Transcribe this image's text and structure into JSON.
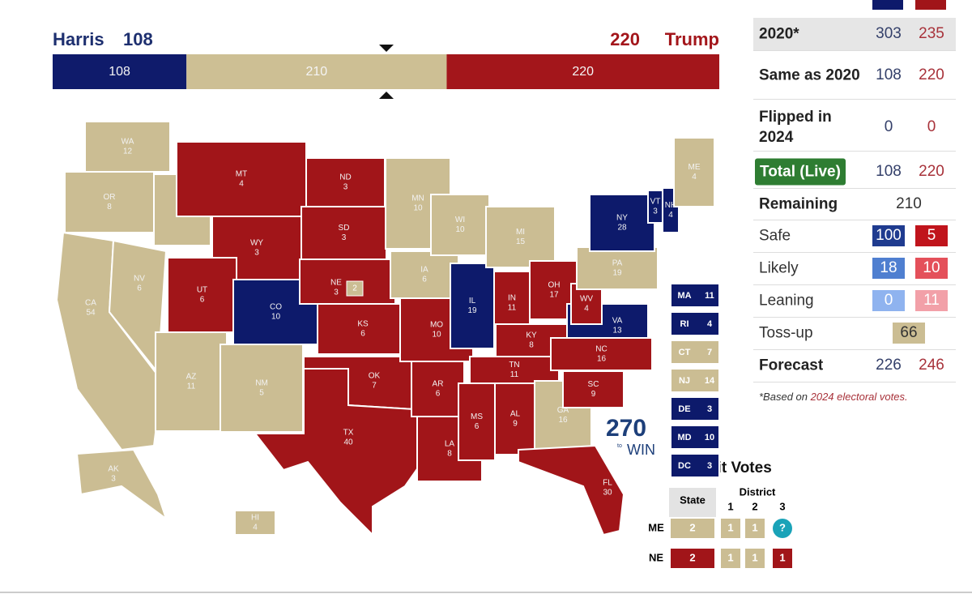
{
  "header": {
    "left_name": "Harris",
    "left_total": 108,
    "right_total": 220,
    "right_name": "Trump"
  },
  "bar": {
    "segments": [
      {
        "value": 108,
        "color": "#0f1b6b"
      },
      {
        "value": 210,
        "color": "#cdbf94"
      },
      {
        "value": 220,
        "color": "#a3161b"
      }
    ]
  },
  "colors": {
    "D": "#0d1a6b",
    "R": "#a11519",
    "T": "#cbbd93"
  },
  "map": {
    "states": [
      {
        "abbr": "WA",
        "votes": 12,
        "color": "T"
      },
      {
        "abbr": "OR",
        "votes": 8,
        "color": "T"
      },
      {
        "abbr": "CA",
        "votes": 54,
        "color": "T"
      },
      {
        "abbr": "NV",
        "votes": 6,
        "color": "T"
      },
      {
        "abbr": "ID",
        "votes": 4,
        "color": "T"
      },
      {
        "abbr": "MT",
        "votes": 4,
        "color": "R"
      },
      {
        "abbr": "WY",
        "votes": 3,
        "color": "R"
      },
      {
        "abbr": "UT",
        "votes": 6,
        "color": "R"
      },
      {
        "abbr": "CO",
        "votes": 10,
        "color": "D"
      },
      {
        "abbr": "AZ",
        "votes": 11,
        "color": "T"
      },
      {
        "abbr": "NM",
        "votes": 5,
        "color": "T"
      },
      {
        "abbr": "ND",
        "votes": 3,
        "color": "R"
      },
      {
        "abbr": "SD",
        "votes": 3,
        "color": "R"
      },
      {
        "abbr": "NE",
        "votes": 3,
        "color": "R"
      },
      {
        "abbr": "KS",
        "votes": 6,
        "color": "R"
      },
      {
        "abbr": "OK",
        "votes": 7,
        "color": "R"
      },
      {
        "abbr": "TX",
        "votes": 40,
        "color": "R"
      },
      {
        "abbr": "MN",
        "votes": 10,
        "color": "T"
      },
      {
        "abbr": "IA",
        "votes": 6,
        "color": "T"
      },
      {
        "abbr": "MO",
        "votes": 10,
        "color": "R"
      },
      {
        "abbr": "AR",
        "votes": 6,
        "color": "R"
      },
      {
        "abbr": "LA",
        "votes": 8,
        "color": "R"
      },
      {
        "abbr": "WI",
        "votes": 10,
        "color": "T"
      },
      {
        "abbr": "IL",
        "votes": 19,
        "color": "D"
      },
      {
        "abbr": "MI",
        "votes": 15,
        "color": "T"
      },
      {
        "abbr": "IN",
        "votes": 11,
        "color": "R"
      },
      {
        "abbr": "OH",
        "votes": 17,
        "color": "R"
      },
      {
        "abbr": "KY",
        "votes": 8,
        "color": "R"
      },
      {
        "abbr": "TN",
        "votes": 11,
        "color": "R"
      },
      {
        "abbr": "MS",
        "votes": 6,
        "color": "R"
      },
      {
        "abbr": "AL",
        "votes": 9,
        "color": "R"
      },
      {
        "abbr": "GA",
        "votes": 16,
        "color": "T"
      },
      {
        "abbr": "FL",
        "votes": 30,
        "color": "R"
      },
      {
        "abbr": "SC",
        "votes": 9,
        "color": "R"
      },
      {
        "abbr": "NC",
        "votes": 16,
        "color": "R"
      },
      {
        "abbr": "VA",
        "votes": 13,
        "color": "D"
      },
      {
        "abbr": "WV",
        "votes": 4,
        "color": "R"
      },
      {
        "abbr": "PA",
        "votes": 19,
        "color": "T"
      },
      {
        "abbr": "NY",
        "votes": 28,
        "color": "D"
      },
      {
        "abbr": "VT",
        "votes": 3,
        "color": "D"
      },
      {
        "abbr": "NH",
        "votes": 4,
        "color": "D"
      },
      {
        "abbr": "ME",
        "votes": 4,
        "color": "T"
      },
      {
        "abbr": "AK",
        "votes": 3,
        "color": "T"
      },
      {
        "abbr": "HI",
        "votes": 4,
        "color": "T"
      }
    ],
    "ne_district": {
      "votes": 2,
      "color": "T"
    },
    "small_states": [
      {
        "abbr": "MA",
        "votes": 11,
        "color": "D"
      },
      {
        "abbr": "RI",
        "votes": 4,
        "color": "D"
      },
      {
        "abbr": "CT",
        "votes": 7,
        "color": "T"
      },
      {
        "abbr": "NJ",
        "votes": 14,
        "color": "T"
      },
      {
        "abbr": "DE",
        "votes": 3,
        "color": "D"
      },
      {
        "abbr": "MD",
        "votes": 10,
        "color": "D"
      },
      {
        "abbr": "DC",
        "votes": 3,
        "color": "D"
      }
    ]
  },
  "logo": {
    "number": "270",
    "to": "to",
    "win": "WIN"
  },
  "split_votes": {
    "title": "Split Votes",
    "state_header": "State",
    "district_header": "District",
    "districts": [
      1,
      2,
      3
    ],
    "rows": [
      {
        "state": "ME",
        "cells": [
          2,
          1,
          1,
          "?"
        ],
        "colors": [
          "T",
          "T",
          "T",
          "Q"
        ]
      },
      {
        "state": "NE",
        "cells": [
          2,
          1,
          1,
          1
        ],
        "colors": [
          "R",
          "T",
          "T",
          "R"
        ]
      }
    ]
  },
  "panel": {
    "rows": [
      {
        "label": "2020*",
        "harris": 303,
        "trump": 235
      },
      {
        "label": "Same as 2020",
        "harris": 108,
        "trump": 220
      },
      {
        "label": "Flipped in 2024",
        "harris": 0,
        "trump": 0
      },
      {
        "label": "Total (Live)",
        "harris": 108,
        "trump": 220
      }
    ],
    "remaining": {
      "label": "Remaining",
      "value": 210
    },
    "categories": [
      {
        "label": "Safe",
        "harris": 100,
        "trump": 5
      },
      {
        "label": "Likely",
        "harris": 18,
        "trump": 10
      },
      {
        "label": "Leaning",
        "harris": 0,
        "trump": 11
      }
    ],
    "tossup": {
      "label": "Toss-up",
      "value": 66
    },
    "forecast": {
      "label": "Forecast",
      "harris": 226,
      "trump": 246
    },
    "footnote": {
      "prefix": "*Based on ",
      "highlight": "2024 electoral votes."
    }
  }
}
